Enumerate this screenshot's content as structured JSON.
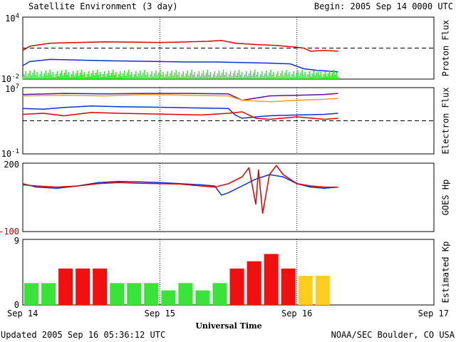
{
  "header": {
    "title": "Satellite Environment (3 day)",
    "begin": "Begin:  2005 Sep 14 0000 UTC"
  },
  "footer": {
    "updated": "Updated 2005 Sep 16 05:36:12 UTC",
    "credit": "NOAA/SEC Boulder, CO USA"
  },
  "xaxis": {
    "title": "Universal Time",
    "ticks": [
      "Sep 14",
      "Sep 15",
      "Sep 16",
      "Sep 17"
    ]
  },
  "colors": {
    "red": "#e00000",
    "blue": "#1030d0",
    "green": "#30e030",
    "orange": "#f0a020",
    "purple": "#601090",
    "kp_green": "#3ae23a",
    "kp_red": "#f01010",
    "kp_yellow": "#ffcc20"
  },
  "chart_data": [
    {
      "type": "line",
      "ylabel": "Proton Flux",
      "yscale": "log",
      "ylim": [
        0.01,
        10000
      ],
      "yticks": [
        {
          "base": "10",
          "exp": "4"
        },
        {
          "base": "10",
          "exp": "-2"
        }
      ],
      "threshold": 10,
      "xlim": [
        0,
        3
      ],
      "series": [
        {
          "color": "red",
          "x": [
            0,
            0.05,
            0.2,
            0.4,
            0.6,
            0.8,
            1.0,
            1.2,
            1.35,
            1.45,
            1.55,
            1.7,
            1.85,
            2.0,
            2.05,
            2.1,
            2.2,
            2.3
          ],
          "y": [
            6,
            15,
            30,
            35,
            40,
            38,
            35,
            40,
            45,
            55,
            30,
            22,
            18,
            12,
            10,
            5,
            6,
            5
          ]
        },
        {
          "color": "blue",
          "x": [
            0,
            0.05,
            0.2,
            0.4,
            0.6,
            0.8,
            1.0,
            1.2,
            1.4,
            1.6,
            1.8,
            1.95,
            2.05,
            2.15,
            2.3
          ],
          "y": [
            0.2,
            0.5,
            0.8,
            0.7,
            0.6,
            0.55,
            0.5,
            0.45,
            0.45,
            0.4,
            0.35,
            0.3,
            0.1,
            0.07,
            0.05
          ]
        },
        {
          "color": "green",
          "style": "spiky",
          "x": [
            0,
            0.3,
            0.6,
            0.9,
            1.2,
            1.5,
            1.8,
            2.1,
            2.3
          ],
          "y": [
            0.015,
            0.015,
            0.015,
            0.015,
            0.015,
            0.015,
            0.015,
            0.015,
            0.015
          ]
        }
      ]
    },
    {
      "type": "line",
      "ylabel": "Electron Flux",
      "yscale": "log",
      "ylim": [
        0.1,
        10000000
      ],
      "yticks": [
        {
          "base": "10",
          "exp": "7"
        },
        {
          "base": "10",
          "exp": "-1"
        }
      ],
      "threshold": 1000,
      "xlim": [
        0,
        3
      ],
      "series": [
        {
          "color": "purple",
          "x": [
            0,
            0.3,
            0.6,
            0.9,
            1.2,
            1.5,
            1.6,
            1.8,
            2.0,
            2.2,
            2.3
          ],
          "y": [
            1500000,
            2000000,
            1800000,
            2000000,
            2000000,
            1800000,
            300000,
            1000000,
            1200000,
            1500000,
            2000000
          ]
        },
        {
          "color": "orange",
          "x": [
            0,
            0.3,
            0.6,
            0.9,
            1.2,
            1.5,
            1.6,
            1.8,
            2.0,
            2.2,
            2.3
          ],
          "y": [
            1000000,
            1200000,
            1000000,
            1500000,
            1200000,
            1000000,
            300000,
            200000,
            300000,
            400000,
            500000
          ]
        },
        {
          "color": "blue",
          "x": [
            0,
            0.15,
            0.3,
            0.5,
            0.7,
            0.9,
            1.1,
            1.3,
            1.5,
            1.55,
            1.6,
            1.7,
            1.8,
            2.0,
            2.2,
            2.3
          ],
          "y": [
            30000,
            25000,
            40000,
            60000,
            50000,
            45000,
            40000,
            35000,
            30000,
            5000,
            2000,
            3000,
            4000,
            5000,
            6000,
            8000
          ]
        },
        {
          "color": "red",
          "x": [
            0,
            0.15,
            0.3,
            0.5,
            0.7,
            0.9,
            1.1,
            1.3,
            1.5,
            1.6,
            1.7,
            1.8,
            2.0,
            2.2,
            2.3
          ],
          "y": [
            6000,
            8000,
            4000,
            10000,
            8000,
            7000,
            6000,
            5000,
            8000,
            12000,
            2000,
            1500,
            3000,
            1500,
            2000
          ]
        }
      ]
    },
    {
      "type": "line",
      "ylabel": "GOES Hp",
      "ylim": [
        -100,
        200
      ],
      "yticks": [
        200,
        -100
      ],
      "xlim": [
        0,
        3
      ],
      "series": [
        {
          "color": "blue",
          "x": [
            0,
            0.1,
            0.25,
            0.4,
            0.55,
            0.7,
            0.85,
            1.0,
            1.15,
            1.3,
            1.4,
            1.45,
            1.5,
            1.6,
            1.7,
            1.8,
            1.9,
            2.0,
            2.1,
            2.2,
            2.3
          ],
          "y": [
            110,
            95,
            90,
            100,
            115,
            120,
            118,
            115,
            110,
            105,
            100,
            60,
            70,
            100,
            130,
            150,
            140,
            110,
            95,
            90,
            95
          ]
        },
        {
          "color": "red",
          "x": [
            0,
            0.1,
            0.25,
            0.4,
            0.55,
            0.7,
            0.85,
            1.0,
            1.15,
            1.3,
            1.4,
            1.5,
            1.6,
            1.65,
            1.7,
            1.72,
            1.75,
            1.8,
            1.85,
            1.9,
            2.0,
            2.1,
            2.2,
            2.3
          ],
          "y": [
            105,
            100,
            95,
            100,
            110,
            115,
            112,
            110,
            108,
            100,
            95,
            110,
            140,
            180,
            20,
            170,
            -20,
            150,
            190,
            150,
            110,
            100,
            95,
            95
          ]
        }
      ]
    },
    {
      "type": "bar",
      "ylabel": "Estimated Kp",
      "ylim": [
        0,
        9
      ],
      "yticks": [
        9,
        0
      ],
      "xlim": [
        0,
        3
      ],
      "bar_width_days": 0.125,
      "values": [
        3,
        3,
        5,
        5,
        5,
        3,
        3,
        3,
        2,
        3,
        2,
        3,
        5,
        6,
        7,
        5,
        4,
        4
      ],
      "colors": [
        "kp_green",
        "kp_green",
        "kp_red",
        "kp_red",
        "kp_red",
        "kp_green",
        "kp_green",
        "kp_green",
        "kp_green",
        "kp_green",
        "kp_green",
        "kp_green",
        "kp_red",
        "kp_red",
        "kp_red",
        "kp_red",
        "kp_yellow",
        "kp_yellow"
      ]
    }
  ]
}
